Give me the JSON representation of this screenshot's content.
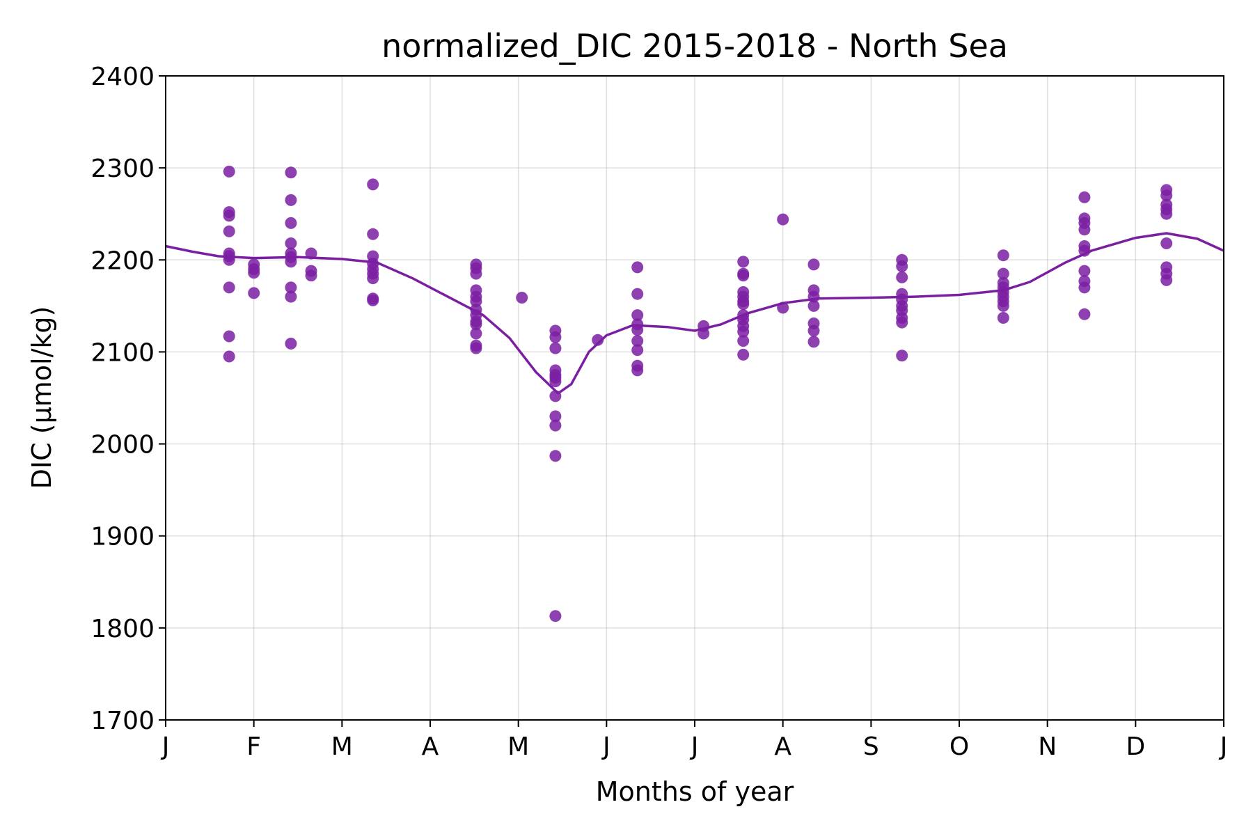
{
  "chart_data": {
    "type": "scatter",
    "title": "normalized_DIC 2015-2018 - North Sea",
    "xlabel": "Months of year",
    "ylabel": "DIC (µmol/kg)",
    "xlim": [
      0,
      12
    ],
    "ylim": [
      1700,
      2400
    ],
    "x_ticks": [
      0,
      1,
      2,
      3,
      4,
      5,
      6,
      7,
      8,
      9,
      10,
      11,
      12
    ],
    "x_tick_labels": [
      "J",
      "F",
      "M",
      "A",
      "M",
      "J",
      "J",
      "A",
      "S",
      "O",
      "N",
      "D",
      "J"
    ],
    "y_ticks": [
      1700,
      1800,
      1900,
      2000,
      2100,
      2200,
      2300,
      2400
    ],
    "y_tick_labels": [
      "1700",
      "1800",
      "1900",
      "2000",
      "2100",
      "2200",
      "2300",
      "2400"
    ],
    "grid": true,
    "color": "#7b1fa2",
    "series": [
      {
        "kind": "scatter",
        "points": [
          [
            0.72,
            2296
          ],
          [
            0.72,
            2252
          ],
          [
            0.72,
            2248
          ],
          [
            0.72,
            2231
          ],
          [
            0.72,
            2207
          ],
          [
            0.72,
            2204
          ],
          [
            0.72,
            2200
          ],
          [
            0.72,
            2170
          ],
          [
            0.72,
            2117
          ],
          [
            0.72,
            2095
          ],
          [
            1.0,
            2195
          ],
          [
            1.0,
            2190
          ],
          [
            1.0,
            2186
          ],
          [
            1.0,
            2164
          ],
          [
            1.42,
            2295
          ],
          [
            1.42,
            2265
          ],
          [
            1.42,
            2240
          ],
          [
            1.42,
            2218
          ],
          [
            1.42,
            2207
          ],
          [
            1.42,
            2203
          ],
          [
            1.42,
            2198
          ],
          [
            1.42,
            2170
          ],
          [
            1.42,
            2160
          ],
          [
            1.42,
            2109
          ],
          [
            1.65,
            2207
          ],
          [
            1.65,
            2188
          ],
          [
            1.65,
            2183
          ],
          [
            2.35,
            2282
          ],
          [
            2.35,
            2228
          ],
          [
            2.35,
            2204
          ],
          [
            2.35,
            2196
          ],
          [
            2.35,
            2190
          ],
          [
            2.35,
            2185
          ],
          [
            2.35,
            2180
          ],
          [
            2.35,
            2158
          ],
          [
            2.35,
            2156
          ],
          [
            3.52,
            2195
          ],
          [
            3.52,
            2191
          ],
          [
            3.52,
            2185
          ],
          [
            3.52,
            2167
          ],
          [
            3.52,
            2160
          ],
          [
            3.52,
            2155
          ],
          [
            3.52,
            2146
          ],
          [
            3.52,
            2140
          ],
          [
            3.52,
            2133
          ],
          [
            3.52,
            2130
          ],
          [
            3.52,
            2120
          ],
          [
            3.52,
            2107
          ],
          [
            3.52,
            2104
          ],
          [
            4.04,
            2159
          ],
          [
            4.42,
            2123
          ],
          [
            4.42,
            2116
          ],
          [
            4.42,
            2104
          ],
          [
            4.42,
            2080
          ],
          [
            4.42,
            2075
          ],
          [
            4.42,
            2072
          ],
          [
            4.42,
            2068
          ],
          [
            4.42,
            2052
          ],
          [
            4.42,
            2030
          ],
          [
            4.42,
            2020
          ],
          [
            4.42,
            1987
          ],
          [
            4.42,
            1813
          ],
          [
            4.9,
            2113
          ],
          [
            5.35,
            2192
          ],
          [
            5.35,
            2163
          ],
          [
            5.35,
            2140
          ],
          [
            5.35,
            2130
          ],
          [
            5.35,
            2124
          ],
          [
            5.35,
            2112
          ],
          [
            5.35,
            2102
          ],
          [
            5.35,
            2085
          ],
          [
            5.35,
            2080
          ],
          [
            6.1,
            2128
          ],
          [
            6.1,
            2120
          ],
          [
            6.55,
            2198
          ],
          [
            6.55,
            2185
          ],
          [
            6.55,
            2183
          ],
          [
            6.55,
            2165
          ],
          [
            6.55,
            2160
          ],
          [
            6.55,
            2155
          ],
          [
            6.55,
            2152
          ],
          [
            6.55,
            2140
          ],
          [
            6.55,
            2135
          ],
          [
            6.55,
            2128
          ],
          [
            6.55,
            2122
          ],
          [
            6.55,
            2112
          ],
          [
            6.55,
            2097
          ],
          [
            7.0,
            2244
          ],
          [
            7.0,
            2148
          ],
          [
            7.35,
            2195
          ],
          [
            7.35,
            2167
          ],
          [
            7.35,
            2160
          ],
          [
            7.35,
            2150
          ],
          [
            7.35,
            2131
          ],
          [
            7.35,
            2123
          ],
          [
            7.35,
            2111
          ],
          [
            8.35,
            2200
          ],
          [
            8.35,
            2193
          ],
          [
            8.35,
            2181
          ],
          [
            8.35,
            2163
          ],
          [
            8.35,
            2157
          ],
          [
            8.35,
            2150
          ],
          [
            8.35,
            2145
          ],
          [
            8.35,
            2137
          ],
          [
            8.35,
            2132
          ],
          [
            8.35,
            2096
          ],
          [
            9.5,
            2205
          ],
          [
            9.5,
            2185
          ],
          [
            9.5,
            2175
          ],
          [
            9.5,
            2170
          ],
          [
            9.5,
            2165
          ],
          [
            9.5,
            2160
          ],
          [
            9.5,
            2155
          ],
          [
            9.5,
            2150
          ],
          [
            9.5,
            2137
          ],
          [
            10.42,
            2268
          ],
          [
            10.42,
            2245
          ],
          [
            10.42,
            2240
          ],
          [
            10.42,
            2233
          ],
          [
            10.42,
            2215
          ],
          [
            10.42,
            2210
          ],
          [
            10.42,
            2188
          ],
          [
            10.42,
            2177
          ],
          [
            10.42,
            2170
          ],
          [
            10.42,
            2141
          ],
          [
            11.35,
            2276
          ],
          [
            11.35,
            2270
          ],
          [
            11.35,
            2260
          ],
          [
            11.35,
            2255
          ],
          [
            11.35,
            2250
          ],
          [
            11.35,
            2218
          ],
          [
            11.35,
            2192
          ],
          [
            11.35,
            2185
          ],
          [
            11.35,
            2178
          ]
        ]
      },
      {
        "kind": "line",
        "points": [
          [
            0.0,
            2215
          ],
          [
            0.3,
            2209
          ],
          [
            0.6,
            2204
          ],
          [
            1.0,
            2202
          ],
          [
            1.5,
            2203
          ],
          [
            2.0,
            2201
          ],
          [
            2.4,
            2197
          ],
          [
            2.8,
            2180
          ],
          [
            3.2,
            2160
          ],
          [
            3.6,
            2140
          ],
          [
            3.9,
            2115
          ],
          [
            4.2,
            2078
          ],
          [
            4.45,
            2055
          ],
          [
            4.6,
            2065
          ],
          [
            4.8,
            2100
          ],
          [
            5.0,
            2118
          ],
          [
            5.3,
            2129
          ],
          [
            5.7,
            2127
          ],
          [
            6.0,
            2123
          ],
          [
            6.3,
            2130
          ],
          [
            6.6,
            2142
          ],
          [
            7.0,
            2153
          ],
          [
            7.4,
            2158
          ],
          [
            8.0,
            2159
          ],
          [
            8.5,
            2160
          ],
          [
            9.0,
            2162
          ],
          [
            9.5,
            2167
          ],
          [
            9.8,
            2176
          ],
          [
            10.2,
            2197
          ],
          [
            10.5,
            2210
          ],
          [
            11.0,
            2224
          ],
          [
            11.35,
            2229
          ],
          [
            11.7,
            2223
          ],
          [
            12.0,
            2210
          ]
        ]
      }
    ]
  }
}
